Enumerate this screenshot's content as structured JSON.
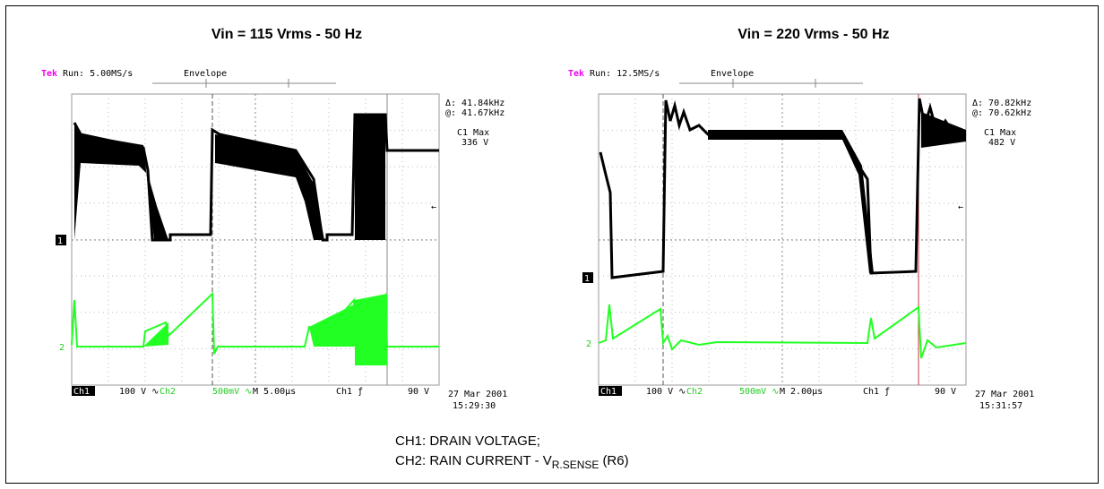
{
  "panels": [
    {
      "title": "Vin = 115 Vrms - 50 Hz",
      "tek": "Tek",
      "run": "Run: 5.00MS/s",
      "mode": "Envelope",
      "delta": "Δ: 41.84kHz",
      "at": "@: 41.67kHz",
      "c1max_label": "C1 Max",
      "c1max_value": "336 V",
      "ch1_marker": "1",
      "ch2_marker": "2",
      "status": [
        "Ch1",
        "100 V ∿",
        "Ch2",
        "500mV ∿",
        "M 5.00µs",
        "Ch1 ƒ",
        "90 V"
      ],
      "date": "27 Mar 2001",
      "time": "15:29:30"
    },
    {
      "title": "Vin = 220 Vrms - 50 Hz",
      "tek": "Tek",
      "run": "Run: 12.5MS/s",
      "mode": "Envelope",
      "delta": "Δ: 70.82kHz",
      "at": "@: 70.62kHz",
      "c1max_label": "C1 Max",
      "c1max_value": "482 V",
      "ch1_marker": "1",
      "ch2_marker": "2",
      "status": [
        "Ch1",
        "100 V ∿",
        "Ch2",
        "500mV ∿",
        "M 2.00µs",
        "Ch1 ƒ",
        "90 V"
      ],
      "date": "27 Mar 2001",
      "time": "15:31:57"
    }
  ],
  "caption": {
    "line1": "CH1: DRAIN VOLTAGE;",
    "line2_prefix": "CH2: RAIN CURRENT - V",
    "line2_subscript": "R.SENSE",
    "line2_suffix": "(R6)"
  }
}
